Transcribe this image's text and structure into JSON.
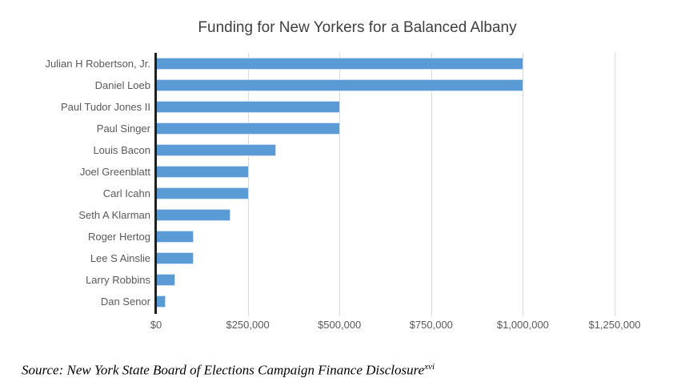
{
  "title": "Funding for New Yorkers for a Balanced Albany",
  "source": {
    "text": "Source: New York State Board of Elections Campaign Finance Disclosure",
    "superscript": "xvi"
  },
  "axis": {
    "tick_labels": [
      "$0",
      "$250,000",
      "$500,000",
      "$750,000",
      "$1,000,000",
      "$1,250,000"
    ]
  },
  "colors": {
    "bar_fill": "#5b9bd5",
    "bar_border": "#c9dcf0",
    "gridline": "#d9d9d9",
    "axis_line": "#1f1f1f",
    "label_text": "#595959",
    "title_text": "#3f3f3f"
  },
  "chart_data": {
    "type": "bar",
    "orientation": "horizontal",
    "title": "Funding for New Yorkers for a Balanced Albany",
    "categories": [
      "Julian H Robertson, Jr.",
      "Daniel Loeb",
      "Paul Tudor Jones II",
      "Paul Singer",
      "Louis Bacon",
      "Joel Greenblatt",
      "Carl Icahn",
      "Seth A Klarman",
      "Roger Hertog",
      "Lee S Ainslie",
      "Larry Robbins",
      "Dan Senor"
    ],
    "values": [
      1000000,
      1000000,
      500000,
      500000,
      325000,
      250000,
      250000,
      200000,
      100000,
      100000,
      50000,
      25000
    ],
    "xlabel": "",
    "ylabel": "",
    "xlim": [
      0,
      1250000
    ],
    "x_ticks": [
      0,
      250000,
      500000,
      750000,
      1000000,
      1250000
    ],
    "grid": true,
    "legend": false
  }
}
